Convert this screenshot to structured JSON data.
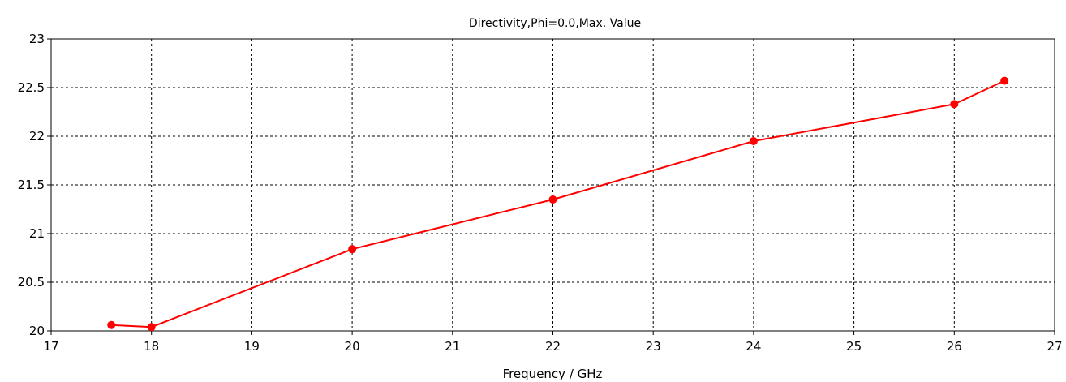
{
  "chart_data": {
    "type": "line",
    "title": "Directivity,Phi=0.0,Max. Value",
    "xlabel": "Frequency / GHz",
    "ylabel": "",
    "xlim": [
      17,
      27
    ],
    "ylim": [
      20,
      23
    ],
    "xticks": [
      "17",
      "18",
      "19",
      "20",
      "21",
      "22",
      "23",
      "24",
      "25",
      "26",
      "27"
    ],
    "yticks": [
      "20",
      "20.5",
      "21",
      "21.5",
      "22",
      "22.5",
      "23"
    ],
    "grid": true,
    "series": [
      {
        "color": "#ff0000",
        "x": [
          17.6,
          18,
          20,
          22,
          24,
          26,
          26.5
        ],
        "y": [
          20.06,
          20.04,
          20.84,
          21.35,
          21.95,
          22.33,
          22.57
        ]
      }
    ]
  }
}
